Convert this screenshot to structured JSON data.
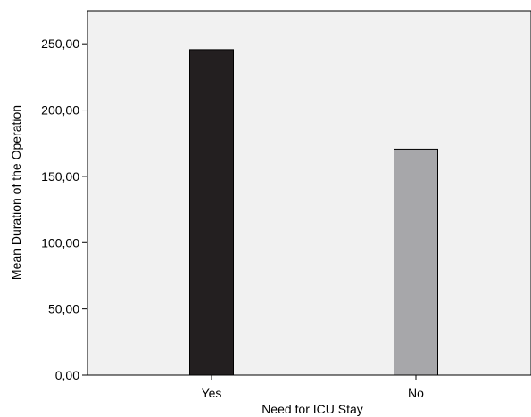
{
  "chart_data": {
    "type": "bar",
    "categories": [
      "Yes",
      "No"
    ],
    "values": [
      245.5,
      170.5
    ],
    "xlabel": "Need for ICU Stay",
    "ylabel": "Mean Duration of the Operation",
    "ylim": [
      0,
      275
    ],
    "yticks": [
      0,
      50,
      100,
      150,
      200,
      250
    ],
    "ytick_labels": [
      "0,00",
      "50,00",
      "100,00",
      "150,00",
      "200,00",
      "250,00"
    ],
    "bar_colors": [
      "#231f20",
      "#a7a7aa"
    ],
    "plot_background": "#f1f1f1",
    "grid": false,
    "legend": false
  }
}
